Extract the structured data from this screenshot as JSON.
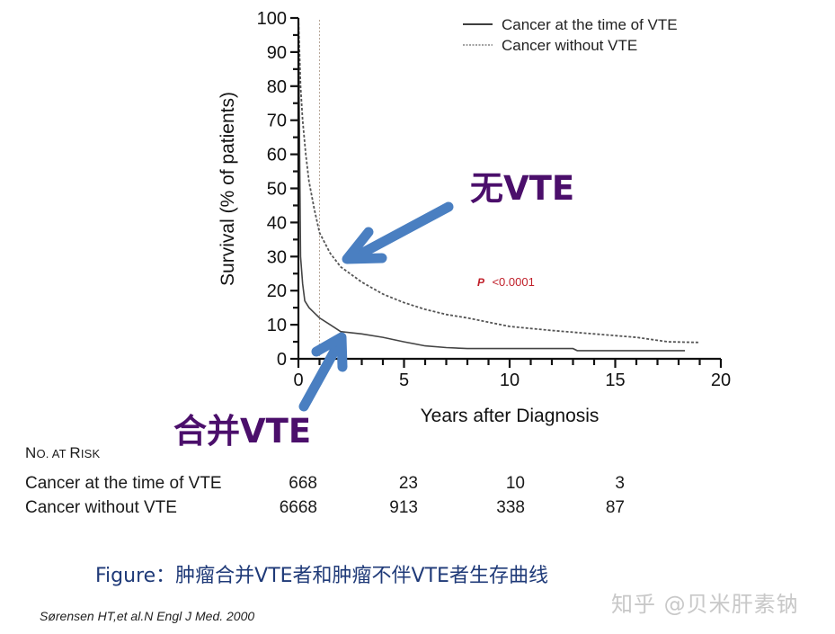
{
  "chart_data": {
    "type": "line",
    "title": "",
    "xlabel": "Years after Diagnosis",
    "ylabel": "Survival (% of patients)",
    "xlim": [
      0,
      20
    ],
    "ylim": [
      0,
      100
    ],
    "x_ticks": [
      0,
      5,
      10,
      15,
      20
    ],
    "y_ticks": [
      0,
      10,
      20,
      30,
      40,
      50,
      60,
      70,
      80,
      90,
      100
    ],
    "grid": false,
    "legend_position": "top-right",
    "reference_line_x": 1,
    "series": [
      {
        "name": "Cancer at the time of VTE",
        "style": "solid",
        "x": [
          0,
          0.1,
          0.2,
          0.3,
          0.5,
          0.75,
          1.0,
          1.5,
          2.0,
          3.0,
          4.0,
          5.0,
          6.0,
          7.0,
          8.0,
          10.0,
          13.0,
          13.2,
          18.3
        ],
        "y": [
          100,
          30,
          22,
          17,
          15,
          13.5,
          12,
          10,
          8,
          7.3,
          6.3,
          5,
          3.8,
          3.3,
          3,
          3,
          3,
          2.4,
          2.4
        ]
      },
      {
        "name": "Cancer without VTE",
        "style": "dotted",
        "x": [
          0,
          0.1,
          0.2,
          0.35,
          0.5,
          0.75,
          1.0,
          1.5,
          2.0,
          3.0,
          4.0,
          5.0,
          6.0,
          7.0,
          8.0,
          10.0,
          12.0,
          14.0,
          16.0,
          17.5,
          19.0
        ],
        "y": [
          100,
          80,
          70,
          60,
          52,
          44,
          37,
          31,
          27,
          22.5,
          19,
          16.5,
          14.5,
          13,
          12,
          9.5,
          8.3,
          7.3,
          6.3,
          5,
          4.8
        ]
      }
    ],
    "annotations": [
      {
        "text": "P <0.0001",
        "x": 8.5,
        "y": 23,
        "color": "#c0202a"
      },
      {
        "text": "无VTE",
        "points_to": "Cancer without VTE",
        "color": "#4b0f6b"
      },
      {
        "text": "合并VTE",
        "points_to": "Cancer at the time of VTE",
        "color": "#4b0f6b"
      }
    ],
    "number_at_risk": {
      "title": "No. at Risk",
      "rows": [
        {
          "label": "Cancer at the time of VTE",
          "values": [
            668,
            23,
            10,
            3
          ]
        },
        {
          "label": "Cancer without VTE",
          "values": [
            6668,
            913,
            338,
            87
          ]
        }
      ]
    }
  },
  "legend": {
    "items": [
      {
        "label": "Cancer at the time of VTE"
      },
      {
        "label": "Cancer without VTE"
      }
    ]
  },
  "axes": {
    "xlabel": "Years after Diagnosis",
    "ylabel": "Survival (% of patients)",
    "x_tick_labels": [
      "0",
      "5",
      "10",
      "15",
      "20"
    ],
    "y_tick_labels": [
      "0",
      "10",
      "20",
      "30",
      "40",
      "50",
      "60",
      "70",
      "80",
      "90",
      "100"
    ]
  },
  "annotations": {
    "p_value_prefix": "P",
    "p_value_text": "<0.0001",
    "no_vte_label": "无VTE",
    "with_vte_label": "合并VTE"
  },
  "risk_table": {
    "title_big_1": "N",
    "title_small_1": "O. AT ",
    "title_big_2": "R",
    "title_small_2": "ISK",
    "rows": [
      {
        "label": "Cancer at the time of VTE",
        "v0": "668",
        "v1": "23",
        "v2": "10",
        "v3": "3"
      },
      {
        "label": "Cancer without VTE",
        "v0": "6668",
        "v1": "913",
        "v2": "338",
        "v3": "87"
      }
    ]
  },
  "caption": "Figure：肿瘤合并VTE者和肿瘤不伴VTE者生存曲线",
  "citation": "Sørensen HT,et al.N Engl J Med. 2000",
  "watermark": "知乎 @贝米肝素钠",
  "colors": {
    "arrow": "#4a7fc1",
    "annotation_text": "#4b0f6b",
    "p_value": "#c0202a",
    "caption": "#1f3a78",
    "axis": "#111111"
  }
}
